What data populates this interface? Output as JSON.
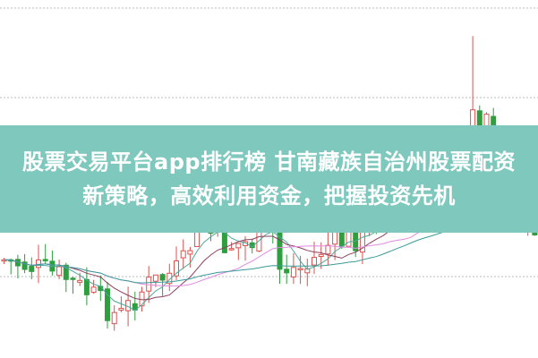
{
  "banner": {
    "title": "股票交易平台app排行榜 甘南藏族自治州股票配资新策略，高效利用资金，把握投资先机",
    "background_color": "#7ec8be"
  },
  "chart_picture": {
    "kind": "candlestick chart with moving averages (decorative, no axes)",
    "colors": {
      "up": "#d9534f",
      "down": "#2e9e3e",
      "ma_short": "#4aa89a",
      "ma_mid": "#8a4060",
      "ma_long": "#e08be0",
      "ma_longest": "#3a9a9a",
      "grid": "#bbbbbb"
    }
  }
}
